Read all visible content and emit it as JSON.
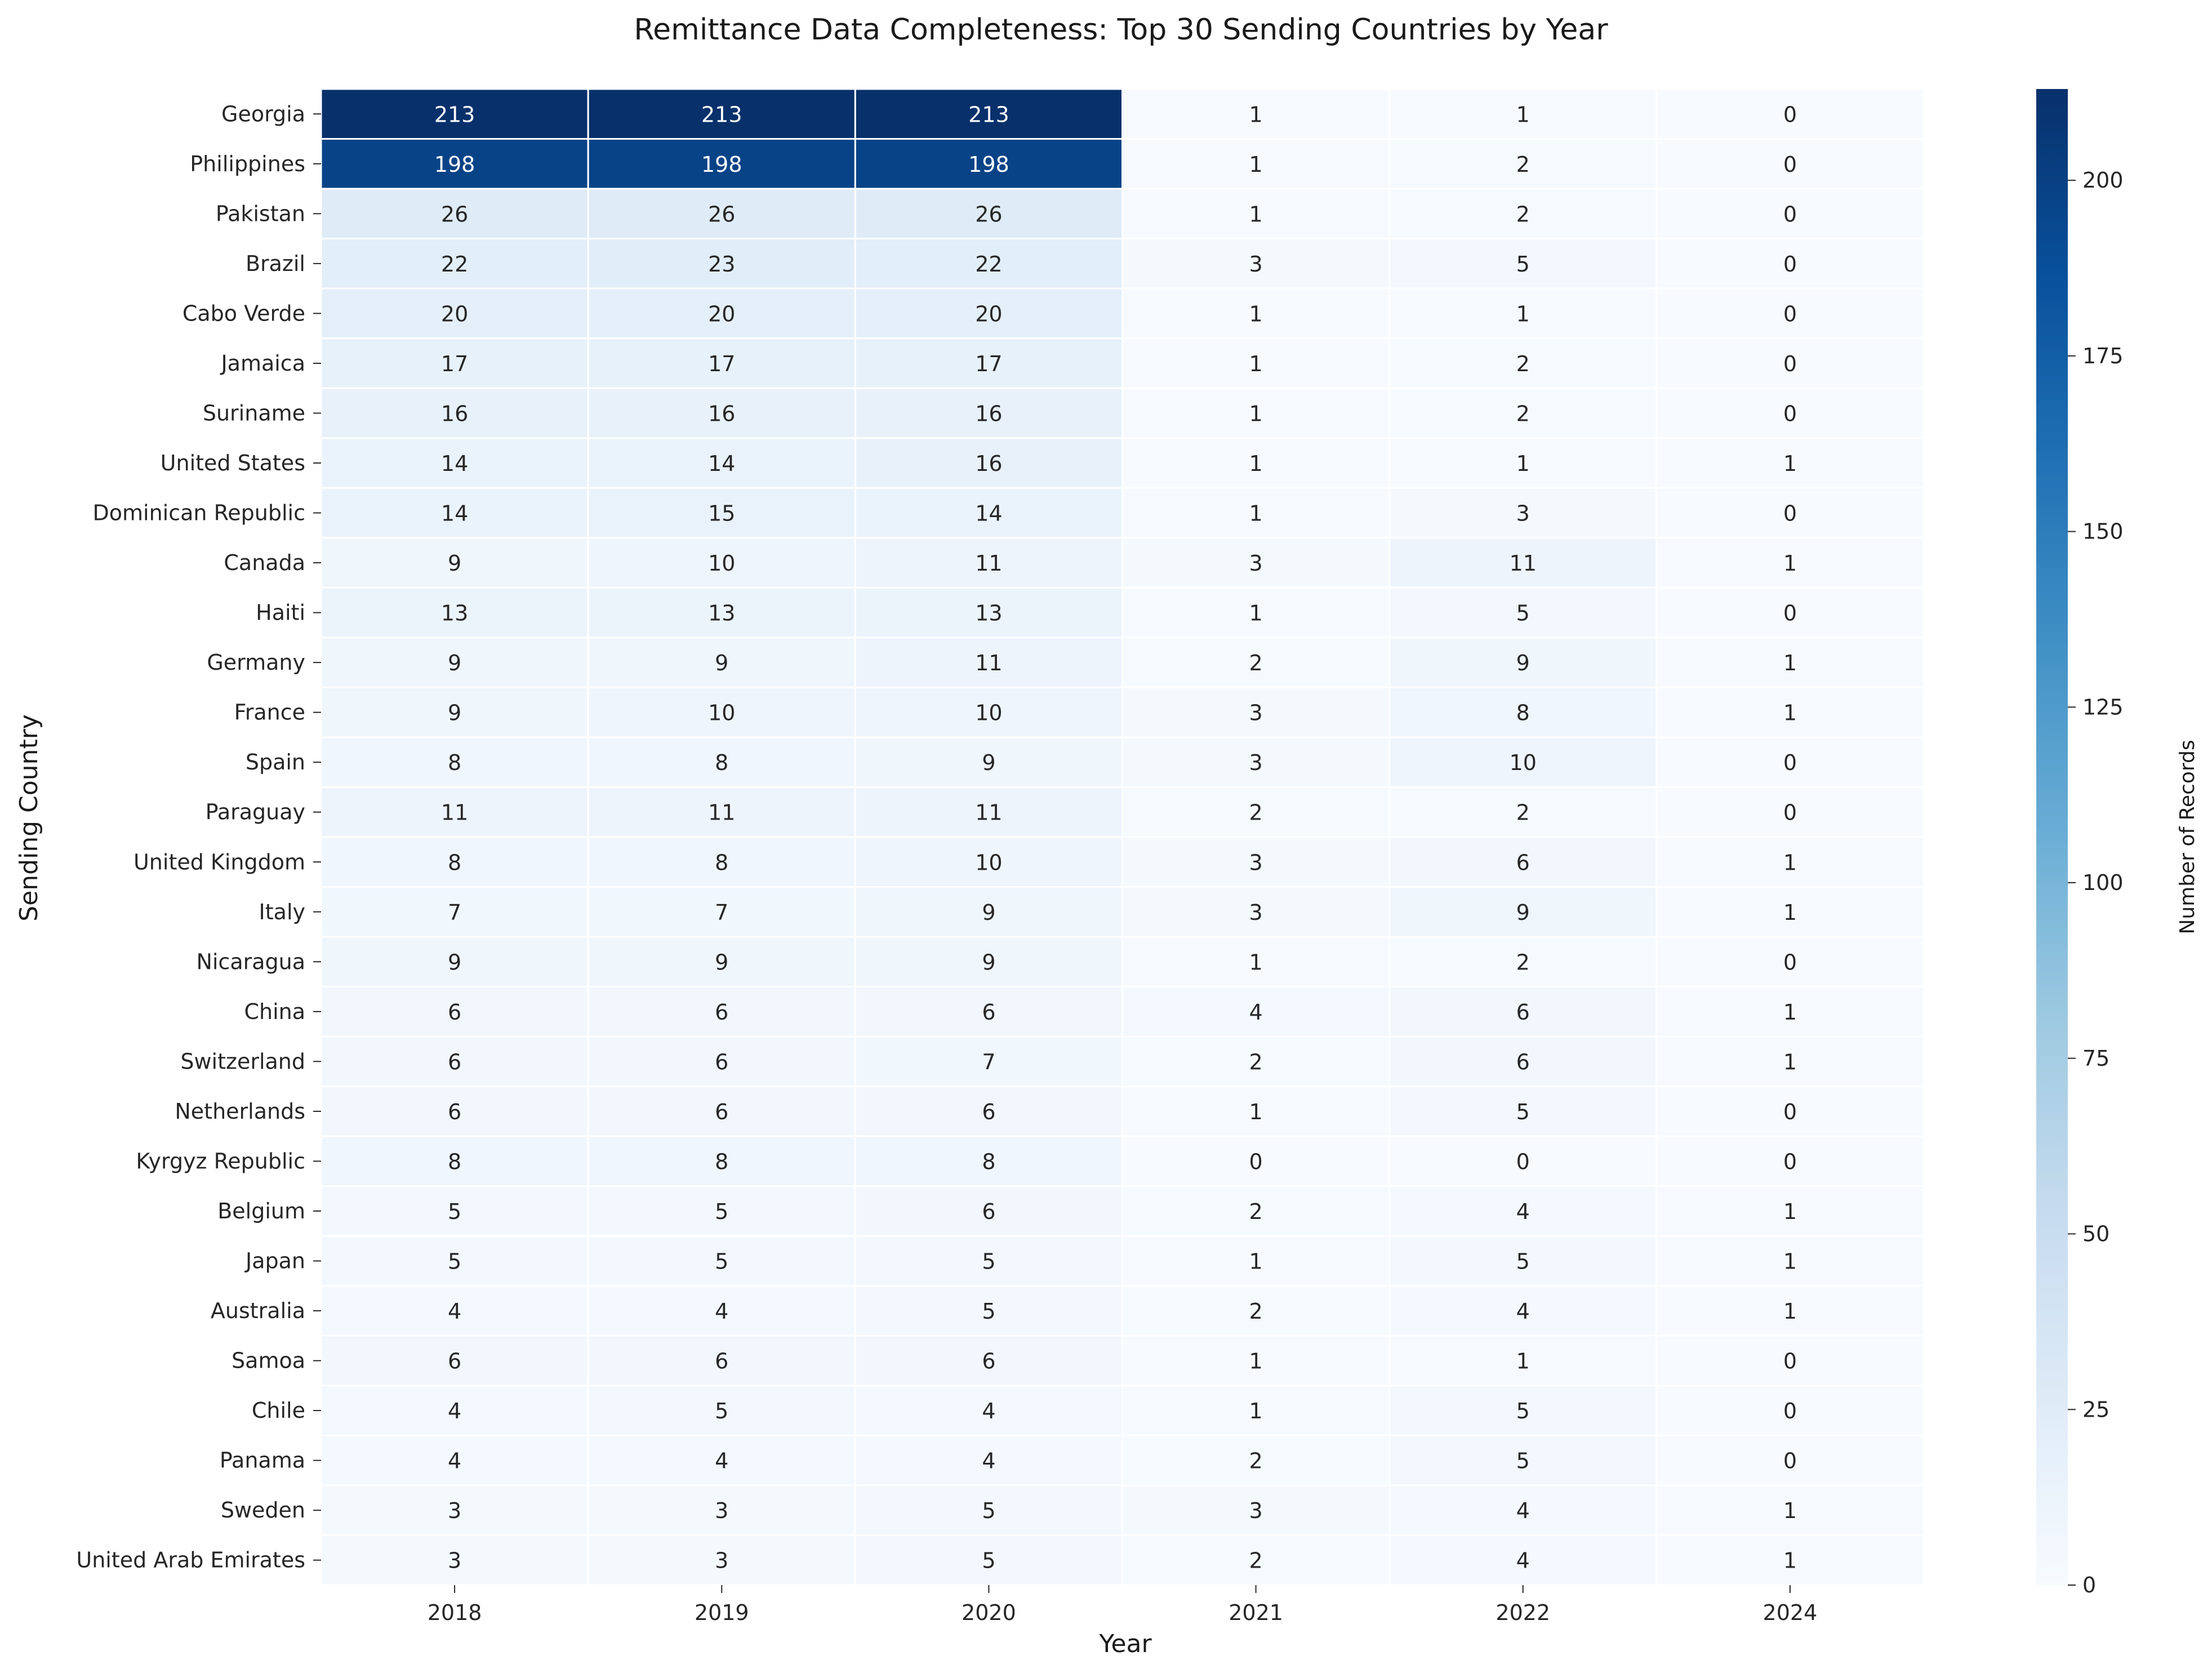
{
  "chart_data": {
    "type": "heatmap",
    "title": "Remittance Data Completeness: Top 30 Sending Countries by Year",
    "xlabel": "Year",
    "ylabel": "Sending Country",
    "colorbar_label": "Number of Records",
    "colormap": "Blues",
    "color_range": [
      0,
      213
    ],
    "colorbar_ticks": [
      0,
      25,
      50,
      75,
      100,
      125,
      150,
      175,
      200
    ],
    "annotated": true,
    "x": [
      "2018",
      "2019",
      "2020",
      "2021",
      "2022",
      "2024"
    ],
    "y": [
      "Georgia",
      "Philippines",
      "Pakistan",
      "Brazil",
      "Cabo Verde",
      "Jamaica",
      "Suriname",
      "United States",
      "Dominican Republic",
      "Canada",
      "Haiti",
      "Germany",
      "France",
      "Spain",
      "Paraguay",
      "United Kingdom",
      "Italy",
      "Nicaragua",
      "China",
      "Switzerland",
      "Netherlands",
      "Kyrgyz Republic",
      "Belgium",
      "Japan",
      "Australia",
      "Samoa",
      "Chile",
      "Panama",
      "Sweden",
      "United Arab Emirates"
    ],
    "values": [
      [
        213,
        213,
        213,
        1,
        1,
        0
      ],
      [
        198,
        198,
        198,
        1,
        2,
        0
      ],
      [
        26,
        26,
        26,
        1,
        2,
        0
      ],
      [
        22,
        23,
        22,
        3,
        5,
        0
      ],
      [
        20,
        20,
        20,
        1,
        1,
        0
      ],
      [
        17,
        17,
        17,
        1,
        2,
        0
      ],
      [
        16,
        16,
        16,
        1,
        2,
        0
      ],
      [
        14,
        14,
        16,
        1,
        1,
        1
      ],
      [
        14,
        15,
        14,
        1,
        3,
        0
      ],
      [
        9,
        10,
        11,
        3,
        11,
        1
      ],
      [
        13,
        13,
        13,
        1,
        5,
        0
      ],
      [
        9,
        9,
        11,
        2,
        9,
        1
      ],
      [
        9,
        10,
        10,
        3,
        8,
        1
      ],
      [
        8,
        8,
        9,
        3,
        10,
        0
      ],
      [
        11,
        11,
        11,
        2,
        2,
        0
      ],
      [
        8,
        8,
        10,
        3,
        6,
        1
      ],
      [
        7,
        7,
        9,
        3,
        9,
        1
      ],
      [
        9,
        9,
        9,
        1,
        2,
        0
      ],
      [
        6,
        6,
        6,
        4,
        6,
        1
      ],
      [
        6,
        6,
        7,
        2,
        6,
        1
      ],
      [
        6,
        6,
        6,
        1,
        5,
        0
      ],
      [
        8,
        8,
        8,
        0,
        0,
        0
      ],
      [
        5,
        5,
        6,
        2,
        4,
        1
      ],
      [
        5,
        5,
        5,
        1,
        5,
        1
      ],
      [
        4,
        4,
        5,
        2,
        4,
        1
      ],
      [
        6,
        6,
        6,
        1,
        1,
        0
      ],
      [
        4,
        5,
        4,
        1,
        5,
        0
      ],
      [
        4,
        4,
        4,
        2,
        5,
        0
      ],
      [
        3,
        3,
        5,
        3,
        4,
        1
      ],
      [
        3,
        3,
        5,
        2,
        4,
        1
      ]
    ]
  }
}
